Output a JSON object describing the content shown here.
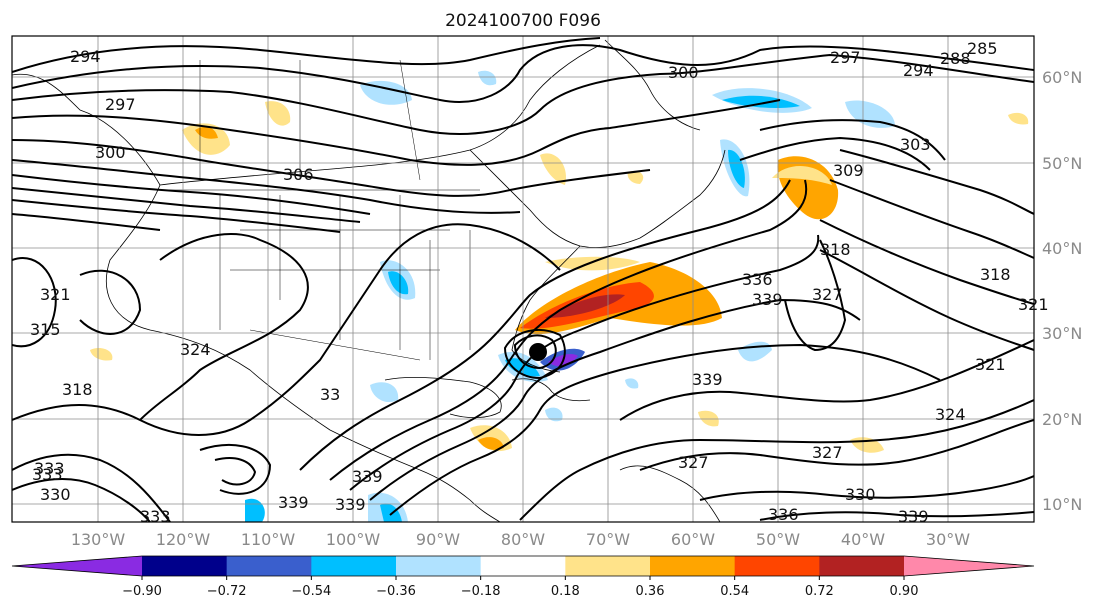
{
  "title": "2024100700 F096",
  "map": {
    "lon_labels": [
      "130°W",
      "120°W",
      "110°W",
      "100°W",
      "90°W",
      "80°W",
      "70°W",
      "60°W",
      "50°W",
      "40°W",
      "30°W"
    ],
    "lat_labels": [
      "60°N",
      "50°N",
      "40°N",
      "30°N",
      "20°N",
      "10°N"
    ],
    "contour_labels": [
      {
        "id": "c1",
        "text": "294"
      },
      {
        "id": "c2",
        "text": "297"
      },
      {
        "id": "c3",
        "text": "300"
      },
      {
        "id": "c4",
        "text": "306"
      },
      {
        "id": "c5",
        "text": "300"
      },
      {
        "id": "c6",
        "text": "285"
      },
      {
        "id": "c7",
        "text": "288"
      },
      {
        "id": "c8",
        "text": "294"
      },
      {
        "id": "c9",
        "text": "297"
      },
      {
        "id": "c10",
        "text": "303"
      },
      {
        "id": "c11",
        "text": "309"
      },
      {
        "id": "c12",
        "text": "318"
      },
      {
        "id": "c13",
        "text": "336"
      },
      {
        "id": "c14",
        "text": "339"
      },
      {
        "id": "c15",
        "text": "327"
      },
      {
        "id": "c16",
        "text": "318"
      },
      {
        "id": "c17",
        "text": "321"
      },
      {
        "id": "c18",
        "text": "315"
      },
      {
        "id": "c19",
        "text": "321"
      },
      {
        "id": "c20",
        "text": "324"
      },
      {
        "id": "c21",
        "text": "318"
      },
      {
        "id": "c22",
        "text": "339"
      },
      {
        "id": "c23",
        "text": "327"
      },
      {
        "id": "c24",
        "text": "327"
      },
      {
        "id": "c25",
        "text": "330"
      },
      {
        "id": "c26",
        "text": "324"
      },
      {
        "id": "c27",
        "text": "321"
      },
      {
        "id": "c28",
        "text": "339"
      },
      {
        "id": "c29",
        "text": "336"
      },
      {
        "id": "c30",
        "text": "339"
      },
      {
        "id": "c31",
        "text": "333"
      },
      {
        "id": "c32",
        "text": "339"
      },
      {
        "id": "c33",
        "text": "339"
      },
      {
        "id": "c34",
        "text": "333"
      },
      {
        "id": "c35",
        "text": "330"
      },
      {
        "id": "c36",
        "text": "33"
      },
      {
        "id": "c37",
        "text": "333"
      }
    ]
  },
  "colorbar": {
    "ticks": [
      "−0.90",
      "−0.72",
      "−0.54",
      "−0.36",
      "−0.18",
      "0.18",
      "0.36",
      "0.54",
      "0.72",
      "0.90"
    ],
    "colors": [
      "#8a2be2",
      "#00008b",
      "#3a5fcd",
      "#00bfff",
      "#b0e2ff",
      "#ffffff",
      "#ffe38a",
      "#ffa500",
      "#ff4500",
      "#b22222",
      "#ff88aa"
    ]
  },
  "hurricane_marker": "storm-center"
}
